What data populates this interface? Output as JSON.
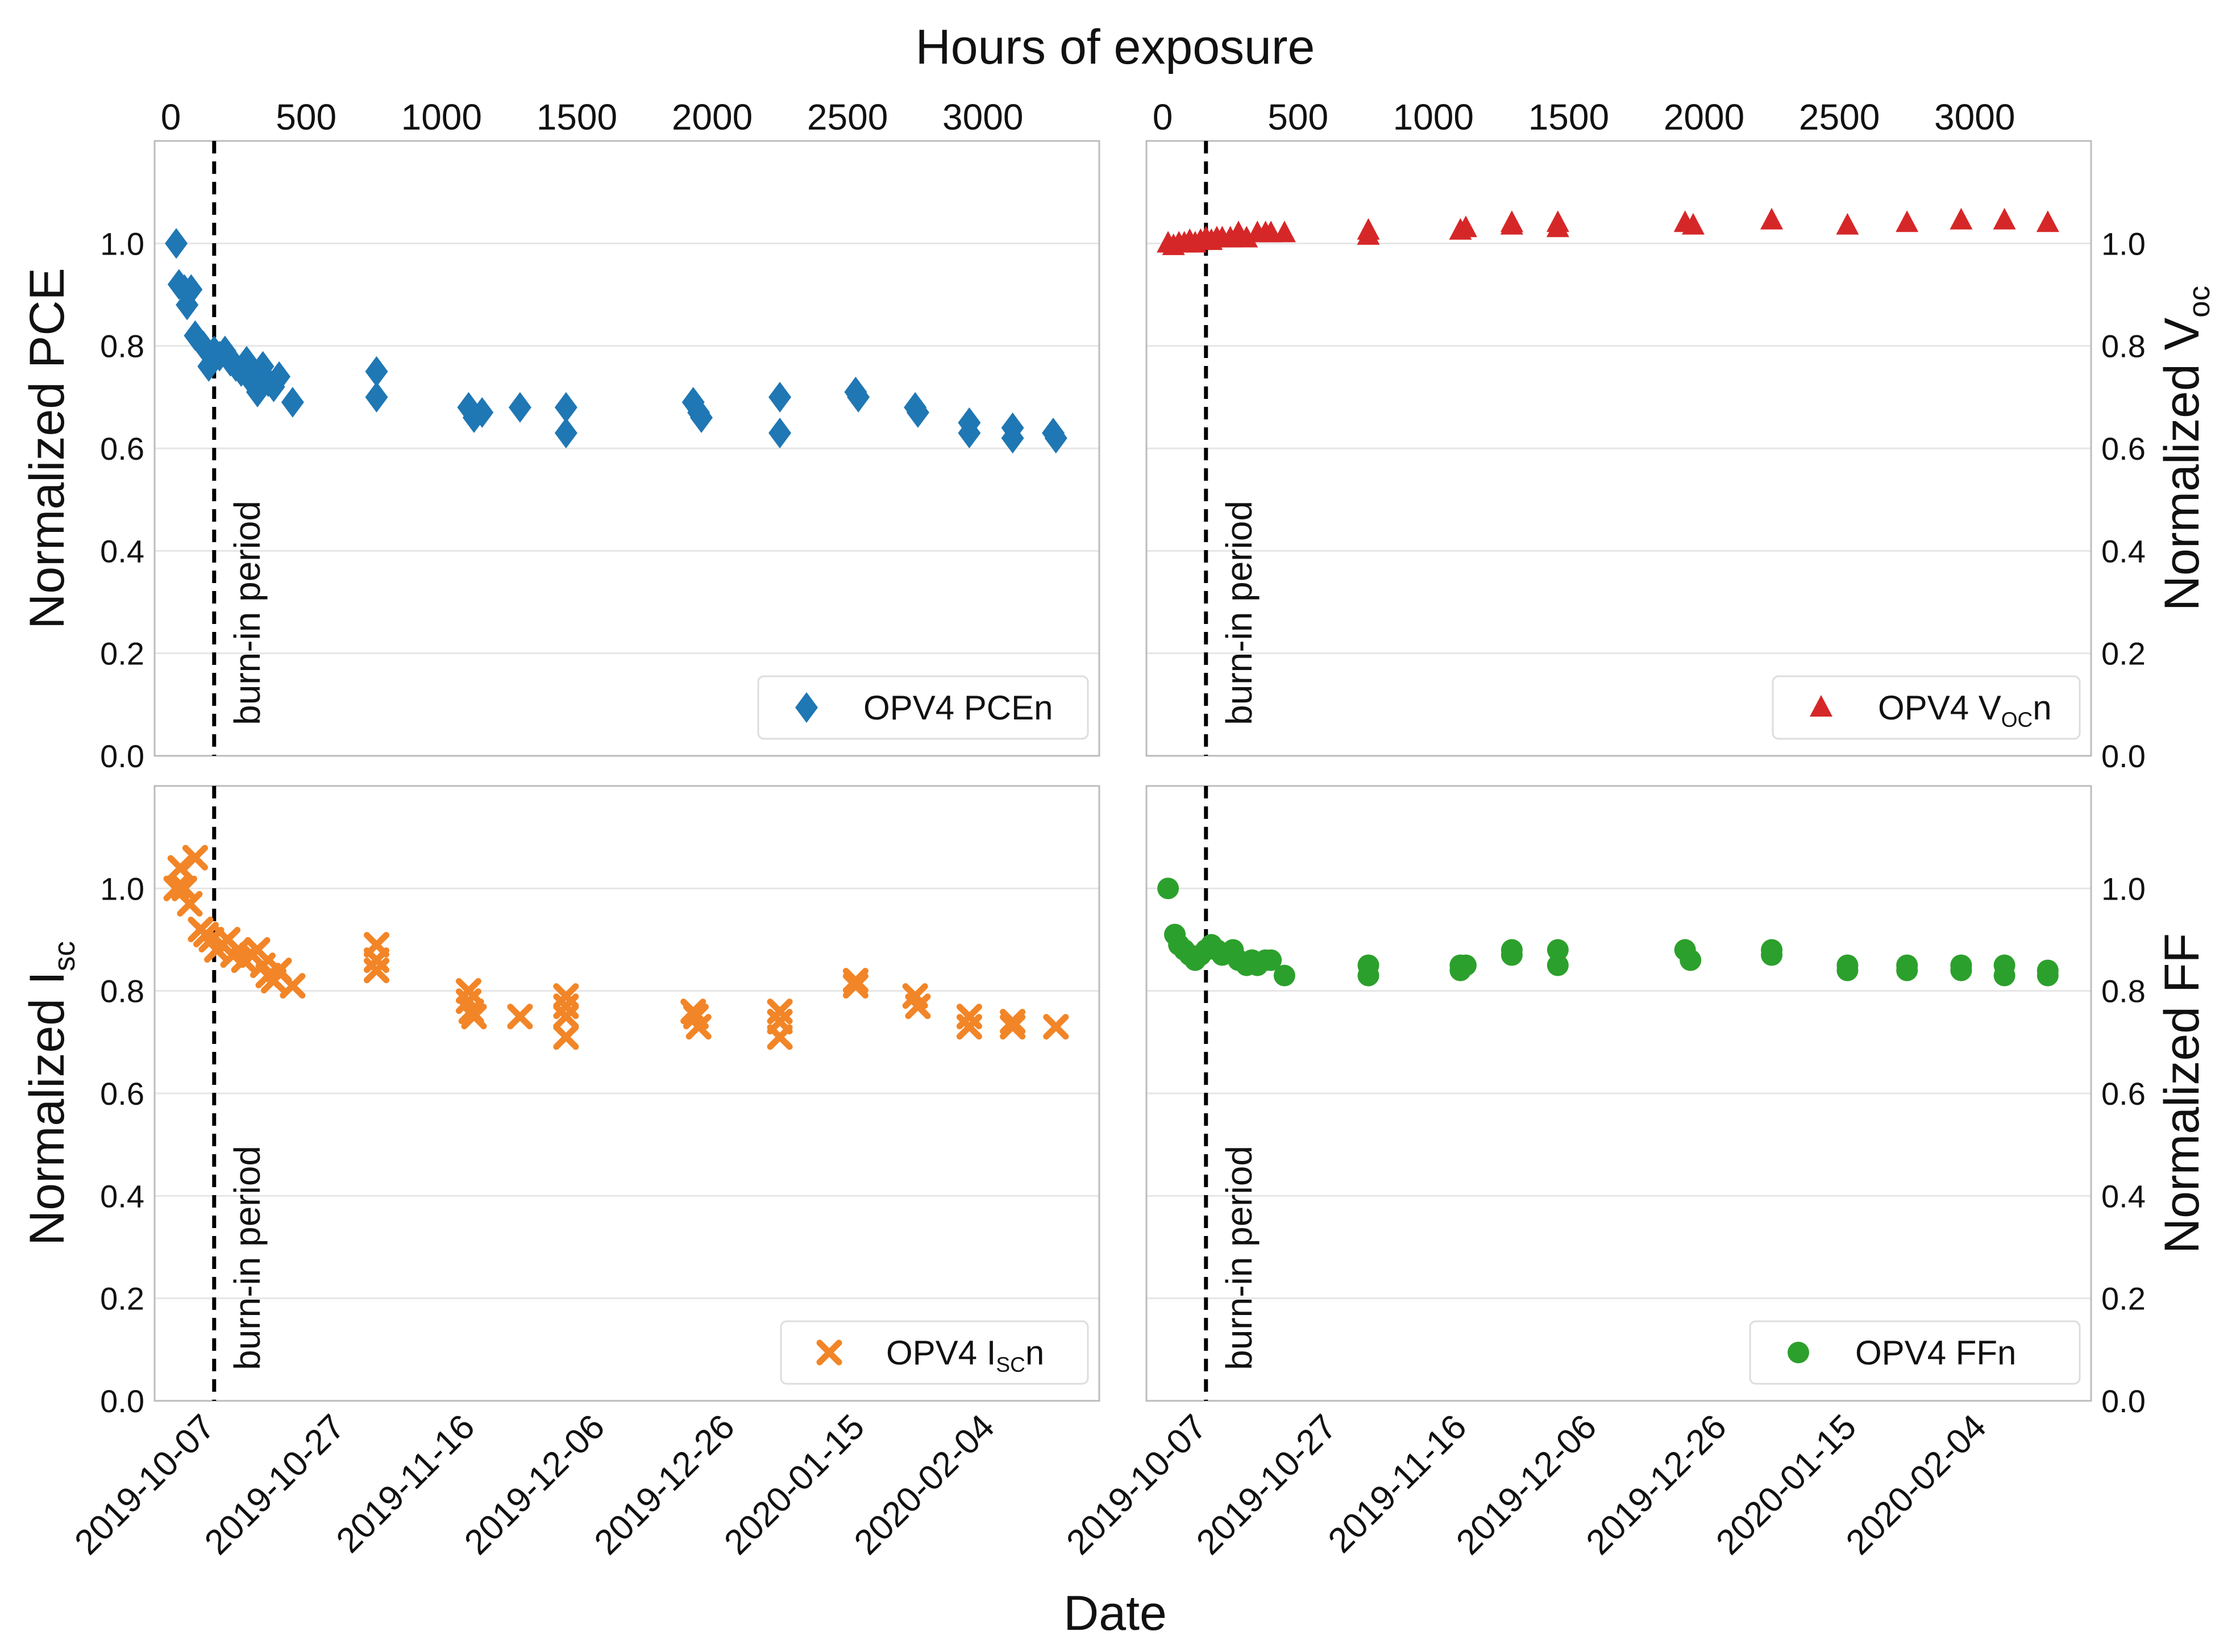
{
  "figure": {
    "top_axis_title": "Hours of exposure",
    "bottom_axis_title": "Date",
    "annotation": "burn-in period",
    "top_ticks": [
      "0",
      "500",
      "1000",
      "1500",
      "2000",
      "2500",
      "3000"
    ],
    "y_ticks": [
      "0.0",
      "0.2",
      "0.4",
      "0.6",
      "0.8",
      "1.0"
    ],
    "date_ticks": [
      "2019-10-07",
      "2019-10-27",
      "2019-11-16",
      "2019-12-06",
      "2019-12-26",
      "2020-01-15",
      "2020-02-04"
    ]
  },
  "chart_data": [
    {
      "id": "pce",
      "type": "scatter",
      "ylabel": "Normalized PCE",
      "ylabel_side": "left",
      "legend": {
        "text": "OPV4 PCEn"
      },
      "marker": "diamond",
      "color": "#1f77b4",
      "xlabel_top": "Hours of exposure",
      "xlim_hours": [
        -60,
        3430
      ],
      "ylim": [
        0,
        1.2
      ],
      "burn_in_hours": 160,
      "points": [
        [
          20,
          1.0
        ],
        [
          30,
          0.92
        ],
        [
          50,
          0.91
        ],
        [
          60,
          0.88
        ],
        [
          75,
          0.91
        ],
        [
          90,
          0.82
        ],
        [
          120,
          0.8
        ],
        [
          140,
          0.76
        ],
        [
          160,
          0.79
        ],
        [
          180,
          0.78
        ],
        [
          200,
          0.79
        ],
        [
          220,
          0.77
        ],
        [
          240,
          0.76
        ],
        [
          260,
          0.75
        ],
        [
          280,
          0.77
        ],
        [
          300,
          0.73
        ],
        [
          320,
          0.71
        ],
        [
          340,
          0.76
        ],
        [
          360,
          0.73
        ],
        [
          380,
          0.72
        ],
        [
          400,
          0.74
        ],
        [
          450,
          0.69
        ],
        [
          760,
          0.75
        ],
        [
          760,
          0.7
        ],
        [
          1100,
          0.68
        ],
        [
          1120,
          0.66
        ],
        [
          1150,
          0.67
        ],
        [
          1290,
          0.68
        ],
        [
          1460,
          0.68
        ],
        [
          1460,
          0.63
        ],
        [
          1930,
          0.69
        ],
        [
          1950,
          0.67
        ],
        [
          1960,
          0.66
        ],
        [
          2250,
          0.7
        ],
        [
          2250,
          0.63
        ],
        [
          2530,
          0.71
        ],
        [
          2540,
          0.7
        ],
        [
          2750,
          0.68
        ],
        [
          2760,
          0.67
        ],
        [
          2950,
          0.65
        ],
        [
          2950,
          0.63
        ],
        [
          3110,
          0.64
        ],
        [
          3110,
          0.62
        ],
        [
          3260,
          0.63
        ],
        [
          3270,
          0.62
        ]
      ]
    },
    {
      "id": "voc",
      "type": "scatter",
      "ylabel": "Normalized V",
      "ylabel_sub": "oc",
      "ylabel_side": "right",
      "legend": {
        "text": "OPV4 V",
        "sub": "OC",
        "suffix": "n"
      },
      "marker": "triangle",
      "color": "#d62728",
      "xlabel_top": "Hours of exposure",
      "xlim_hours": [
        -60,
        3430
      ],
      "ylim": [
        0,
        1.2
      ],
      "burn_in_hours": 160,
      "points": [
        [
          20,
          1.0
        ],
        [
          40,
          0.995
        ],
        [
          60,
          1.0
        ],
        [
          80,
          1.0
        ],
        [
          100,
          1.005
        ],
        [
          120,
          1.0
        ],
        [
          140,
          1.005
        ],
        [
          160,
          1.01
        ],
        [
          180,
          1.005
        ],
        [
          200,
          1.01
        ],
        [
          220,
          1.01
        ],
        [
          250,
          1.01
        ],
        [
          280,
          1.02
        ],
        [
          310,
          1.01
        ],
        [
          350,
          1.02
        ],
        [
          380,
          1.02
        ],
        [
          400,
          1.02
        ],
        [
          450,
          1.02
        ],
        [
          760,
          1.025
        ],
        [
          760,
          1.015
        ],
        [
          1100,
          1.025
        ],
        [
          1120,
          1.03
        ],
        [
          1290,
          1.04
        ],
        [
          1290,
          1.035
        ],
        [
          1460,
          1.04
        ],
        [
          1460,
          1.03
        ],
        [
          1930,
          1.04
        ],
        [
          1960,
          1.035
        ],
        [
          2250,
          1.045
        ],
        [
          2530,
          1.035
        ],
        [
          2750,
          1.04
        ],
        [
          2950,
          1.045
        ],
        [
          3110,
          1.045
        ],
        [
          3270,
          1.04
        ]
      ]
    },
    {
      "id": "isc",
      "type": "scatter",
      "ylabel": "Normalized I",
      "ylabel_sub": "sc",
      "ylabel_side": "left",
      "legend": {
        "text": "OPV4 I",
        "sub": "SC",
        "suffix": "n"
      },
      "marker": "x",
      "color": "#f28527",
      "xlabel": "Date",
      "xlim_hours": [
        -60,
        3430
      ],
      "ylim": [
        0,
        1.2
      ],
      "burn_in_hours": 160,
      "points": [
        [
          20,
          1.0
        ],
        [
          35,
          1.04
        ],
        [
          50,
          1.0
        ],
        [
          70,
          0.97
        ],
        [
          90,
          1.06
        ],
        [
          110,
          0.92
        ],
        [
          130,
          0.91
        ],
        [
          150,
          0.9
        ],
        [
          170,
          0.88
        ],
        [
          190,
          0.89
        ],
        [
          210,
          0.9
        ],
        [
          230,
          0.87
        ],
        [
          250,
          0.88
        ],
        [
          270,
          0.86
        ],
        [
          300,
          0.87
        ],
        [
          320,
          0.88
        ],
        [
          340,
          0.85
        ],
        [
          360,
          0.83
        ],
        [
          380,
          0.82
        ],
        [
          400,
          0.84
        ],
        [
          450,
          0.81
        ],
        [
          760,
          0.89
        ],
        [
          760,
          0.86
        ],
        [
          760,
          0.84
        ],
        [
          1100,
          0.8
        ],
        [
          1100,
          0.78
        ],
        [
          1110,
          0.76
        ],
        [
          1120,
          0.75
        ],
        [
          1290,
          0.75
        ],
        [
          1460,
          0.79
        ],
        [
          1460,
          0.77
        ],
        [
          1460,
          0.75
        ],
        [
          1460,
          0.71
        ],
        [
          1930,
          0.76
        ],
        [
          1940,
          0.75
        ],
        [
          1950,
          0.73
        ],
        [
          2250,
          0.76
        ],
        [
          2250,
          0.74
        ],
        [
          2250,
          0.71
        ],
        [
          2530,
          0.82
        ],
        [
          2530,
          0.81
        ],
        [
          2750,
          0.79
        ],
        [
          2760,
          0.77
        ],
        [
          2950,
          0.75
        ],
        [
          2950,
          0.73
        ],
        [
          3110,
          0.74
        ],
        [
          3110,
          0.73
        ],
        [
          3270,
          0.73
        ]
      ]
    },
    {
      "id": "ff",
      "type": "scatter",
      "ylabel": "Normalized FF",
      "ylabel_side": "right",
      "legend": {
        "text": "OPV4 FFn"
      },
      "marker": "circle",
      "color": "#2ca02c",
      "xlabel": "Date",
      "xlim_hours": [
        -60,
        3430
      ],
      "ylim": [
        0,
        1.2
      ],
      "burn_in_hours": 160,
      "points": [
        [
          20,
          1.0
        ],
        [
          45,
          0.91
        ],
        [
          60,
          0.89
        ],
        [
          80,
          0.88
        ],
        [
          100,
          0.87
        ],
        [
          120,
          0.86
        ],
        [
          140,
          0.87
        ],
        [
          160,
          0.88
        ],
        [
          180,
          0.89
        ],
        [
          200,
          0.88
        ],
        [
          220,
          0.87
        ],
        [
          260,
          0.88
        ],
        [
          280,
          0.86
        ],
        [
          310,
          0.85
        ],
        [
          330,
          0.86
        ],
        [
          350,
          0.85
        ],
        [
          380,
          0.86
        ],
        [
          400,
          0.86
        ],
        [
          450,
          0.83
        ],
        [
          760,
          0.85
        ],
        [
          760,
          0.83
        ],
        [
          1100,
          0.85
        ],
        [
          1100,
          0.84
        ],
        [
          1120,
          0.85
        ],
        [
          1290,
          0.88
        ],
        [
          1290,
          0.87
        ],
        [
          1460,
          0.88
        ],
        [
          1460,
          0.85
        ],
        [
          1930,
          0.88
        ],
        [
          1950,
          0.86
        ],
        [
          2250,
          0.88
        ],
        [
          2250,
          0.87
        ],
        [
          2530,
          0.85
        ],
        [
          2530,
          0.84
        ],
        [
          2750,
          0.85
        ],
        [
          2750,
          0.84
        ],
        [
          2950,
          0.85
        ],
        [
          2950,
          0.84
        ],
        [
          3110,
          0.85
        ],
        [
          3110,
          0.83
        ],
        [
          3270,
          0.84
        ],
        [
          3270,
          0.83
        ]
      ]
    }
  ]
}
